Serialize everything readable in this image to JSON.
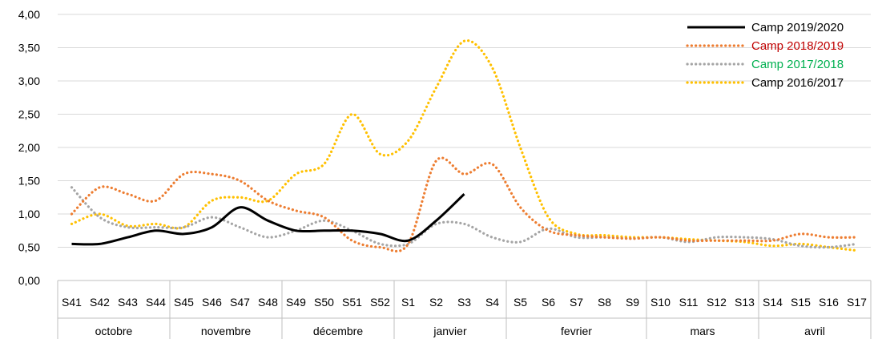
{
  "chart_data": {
    "type": "line",
    "categories": [
      "S41",
      "S42",
      "S43",
      "S44",
      "S45",
      "S46",
      "S47",
      "S48",
      "S49",
      "S50",
      "S51",
      "S52",
      "S1",
      "S2",
      "S3",
      "S4",
      "S5",
      "S6",
      "S7",
      "S8",
      "S9",
      "S10",
      "S11",
      "S12",
      "S13",
      "S14",
      "S15",
      "S16",
      "S17"
    ],
    "groups": [
      {
        "label": "octobre",
        "count": 4
      },
      {
        "label": "novembre",
        "count": 4
      },
      {
        "label": "décembre",
        "count": 4
      },
      {
        "label": "janvier",
        "count": 4
      },
      {
        "label": "fevrier",
        "count": 5
      },
      {
        "label": "mars",
        "count": 4
      },
      {
        "label": "avril",
        "count": 4
      }
    ],
    "ylim": [
      0,
      4
    ],
    "yticks": [
      "0,00",
      "0,50",
      "1,00",
      "1,50",
      "2,00",
      "2,50",
      "3,00",
      "3,50",
      "4,00"
    ],
    "grid": true,
    "legend_position": "top-right",
    "series": [
      {
        "name": "Camp 2019/2020",
        "color": "#000000",
        "label_color": "#000000",
        "style": "solid",
        "values": [
          0.55,
          0.55,
          0.65,
          0.75,
          0.7,
          0.8,
          1.1,
          0.9,
          0.75,
          0.75,
          0.75,
          0.7,
          0.6,
          0.9,
          1.3,
          null,
          null,
          null,
          null,
          null,
          null,
          null,
          null,
          null,
          null,
          null,
          null,
          null,
          null
        ]
      },
      {
        "name": "Camp 2018/2019",
        "color": "#ED7D31",
        "label_color": "#C00000",
        "style": "dotted",
        "values": [
          1.0,
          1.4,
          1.3,
          1.2,
          1.6,
          1.6,
          1.5,
          1.2,
          1.05,
          0.95,
          0.6,
          0.5,
          0.55,
          1.8,
          1.6,
          1.75,
          1.1,
          0.75,
          0.68,
          0.65,
          0.63,
          0.65,
          0.6,
          0.6,
          0.6,
          0.6,
          0.7,
          0.65,
          0.65
        ]
      },
      {
        "name": "Camp 2017/2018",
        "color": "#A5A5A5",
        "label_color": "#00B050",
        "style": "dotted",
        "values": [
          1.4,
          0.95,
          0.8,
          0.8,
          0.8,
          0.95,
          0.8,
          0.65,
          0.75,
          0.9,
          0.75,
          0.55,
          0.55,
          0.85,
          0.85,
          0.65,
          0.58,
          0.78,
          0.65,
          0.65,
          0.63,
          0.65,
          0.58,
          0.65,
          0.65,
          0.62,
          0.52,
          0.5,
          0.55
        ]
      },
      {
        "name": "Camp 2016/2017",
        "color": "#FFC000",
        "label_color": "#000000",
        "style": "dotted",
        "values": [
          0.85,
          1.0,
          0.82,
          0.85,
          0.8,
          1.2,
          1.25,
          1.2,
          1.6,
          1.75,
          2.5,
          1.9,
          2.1,
          2.9,
          3.6,
          3.2,
          2.0,
          0.95,
          0.7,
          0.68,
          0.65,
          0.65,
          0.62,
          0.6,
          0.58,
          0.52,
          0.55,
          0.5,
          0.45
        ]
      }
    ]
  }
}
